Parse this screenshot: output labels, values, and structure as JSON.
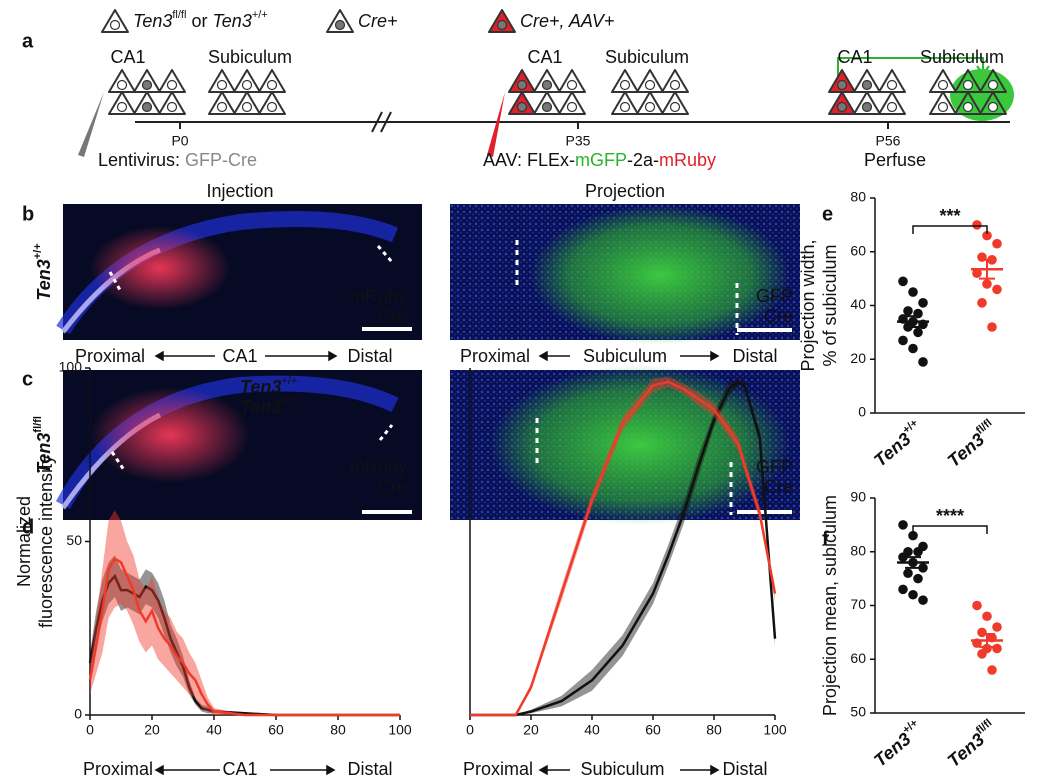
{
  "panel_labels": [
    "a",
    "b",
    "c",
    "d",
    "e",
    "f"
  ],
  "schematic": {
    "legend_wt": [
      "Ten3",
      "fl/fl",
      " or ",
      "Ten3",
      "+/+"
    ],
    "legend_cre": "Cre+",
    "legend_aav": "Cre+, AAV+",
    "region_labels": [
      "CA1",
      "Subiculum",
      "CA1",
      "Subiculum",
      "CA1",
      "Subiculum"
    ],
    "timepoints": [
      "P0",
      "P35",
      "P56"
    ],
    "lentivirus": [
      "Lentivirus: ",
      "GFP-Cre"
    ],
    "aav": [
      "AAV: FLEx-",
      "mGFP",
      "-2a-",
      "mRuby"
    ],
    "perfuse": "Perfuse"
  },
  "images": {
    "injection": "Injection",
    "projection": "Projection",
    "row_b_genotype": [
      "Ten3",
      "+/+"
    ],
    "row_c_genotype": [
      "Ten3",
      "fl/fl"
    ],
    "b_left": [
      "mRuby",
      "Cre"
    ],
    "b_right": [
      "GFP",
      "Cre"
    ],
    "c_left": [
      "mRuby",
      "Cre"
    ],
    "c_right": [
      "GFP",
      "Cre"
    ],
    "axis_ca1": [
      "Proximal",
      "CA1",
      "Distal"
    ],
    "axis_sub": [
      "Proximal",
      "Subiculum",
      "Distal"
    ]
  },
  "chart_data": [
    {
      "type": "line",
      "ylabel": [
        "Normalized",
        "fluorescence intensity"
      ],
      "xlabel_parts": [
        "Proximal",
        "CA1",
        "Distal"
      ],
      "xlim": [
        0,
        100
      ],
      "xticks": [
        0,
        20,
        40,
        60,
        80,
        100
      ],
      "ylim": [
        0,
        100
      ],
      "yticks": [
        0,
        50,
        100
      ],
      "x": [
        0,
        2,
        4,
        6,
        8,
        10,
        12,
        14,
        16,
        18,
        20,
        22,
        24,
        26,
        28,
        30,
        32,
        34,
        36,
        38,
        40,
        50,
        60,
        80,
        100
      ],
      "series": [
        {
          "name": "Ten3",
          "name_sup": "+/+",
          "color": "#111111",
          "values": [
            15,
            25,
            33,
            38,
            40,
            36,
            36,
            35,
            34,
            37,
            36,
            33,
            28,
            22,
            18,
            14,
            8,
            4,
            2,
            1.5,
            1,
            0.5,
            0,
            0,
            0
          ],
          "error": [
            3,
            5,
            6,
            6,
            6,
            6,
            5,
            5,
            5,
            5,
            5,
            5,
            5,
            4,
            4,
            3,
            2,
            1,
            1,
            1,
            0.5,
            0.3,
            0,
            0,
            0
          ]
        },
        {
          "name": "Ten3",
          "name_sup": "fl/fl",
          "color": "#f03a2a",
          "values": [
            10,
            20,
            30,
            42,
            45,
            44,
            40,
            36,
            30,
            27,
            30,
            25,
            22,
            20,
            17,
            15,
            12,
            10,
            6,
            3,
            1,
            0,
            0,
            0,
            0
          ],
          "error": [
            4,
            8,
            12,
            14,
            14,
            12,
            10,
            10,
            9,
            9,
            10,
            9,
            8,
            8,
            7,
            7,
            6,
            5,
            4,
            2,
            1,
            0,
            0,
            0,
            0
          ]
        }
      ]
    },
    {
      "type": "line",
      "xlabel_parts": [
        "Proximal",
        "Subiculum",
        "Distal"
      ],
      "xlim": [
        0,
        100
      ],
      "xticks": [
        0,
        20,
        40,
        60,
        80,
        100
      ],
      "ylim": [
        0,
        100
      ],
      "x": [
        0,
        15,
        20,
        30,
        40,
        50,
        60,
        65,
        70,
        75,
        80,
        85,
        88,
        90,
        95,
        100
      ],
      "series": [
        {
          "color": "#111111",
          "values": [
            0,
            0,
            1,
            4,
            10,
            20,
            35,
            46,
            58,
            72,
            85,
            94,
            96,
            95,
            80,
            22
          ],
          "error": [
            0,
            0,
            0.5,
            1.5,
            3,
            3,
            3,
            3,
            3,
            3,
            2,
            2,
            1,
            1,
            2,
            2
          ]
        },
        {
          "color": "#f03a2a",
          "values": [
            0,
            0,
            8,
            35,
            62,
            84,
            95,
            96,
            94,
            91,
            88,
            82,
            78,
            72,
            58,
            35
          ],
          "error": [
            0,
            0,
            1,
            2,
            2,
            2,
            2,
            1.5,
            1.5,
            2,
            2,
            2,
            2,
            2,
            2,
            2
          ]
        }
      ]
    },
    {
      "type": "dot",
      "ylabel": [
        "Projection width,",
        "% of subiculum"
      ],
      "significance": "***",
      "categories": [
        "Ten3",
        "Ten3"
      ],
      "category_superscripts": [
        "+/+",
        "fl/fl"
      ],
      "colors": [
        "#111111",
        "#f03a2a"
      ],
      "ylim": [
        0,
        80
      ],
      "yticks": [
        0,
        20,
        40,
        60,
        80
      ],
      "values": [
        [
          49,
          45,
          41,
          38,
          37,
          35,
          34,
          33,
          32,
          30,
          27,
          24,
          19
        ],
        [
          70,
          66,
          63,
          58,
          57,
          52,
          48,
          46,
          41,
          32
        ]
      ],
      "means": [
        34,
        53.5
      ],
      "sem": [
        2,
        3.5
      ]
    },
    {
      "type": "dot",
      "ylabel": [
        "Projection mean, subiculum"
      ],
      "significance": "****",
      "categories": [
        "Ten3",
        "Ten3"
      ],
      "category_superscripts": [
        "+/+",
        "fl/fl"
      ],
      "colors": [
        "#111111",
        "#f03a2a"
      ],
      "ylim": [
        50,
        90
      ],
      "yticks": [
        50,
        60,
        70,
        80,
        90
      ],
      "values": [
        [
          85,
          83,
          81,
          80,
          80,
          79,
          78,
          77,
          76,
          75,
          73,
          72,
          71
        ],
        [
          70,
          68,
          66,
          65,
          64,
          63,
          62,
          62,
          61,
          58
        ]
      ],
      "means": [
        78,
        63.5
      ],
      "sem": [
        1,
        1.2
      ]
    }
  ]
}
